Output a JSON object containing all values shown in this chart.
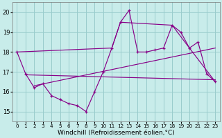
{
  "xlabel": "Windchill (Refroidissement éolien,°C)",
  "bg_color": "#c8ecea",
  "grid_color": "#99cccc",
  "line_color": "#880088",
  "xlim": [
    -0.5,
    23.5
  ],
  "ylim": [
    14.5,
    20.5
  ],
  "yticks": [
    15,
    16,
    17,
    18,
    19,
    20
  ],
  "xticks": [
    0,
    1,
    2,
    3,
    4,
    5,
    6,
    7,
    8,
    9,
    10,
    11,
    12,
    13,
    14,
    15,
    16,
    17,
    18,
    19,
    20,
    21,
    22,
    23
  ],
  "data_x": [
    0,
    1,
    2,
    3,
    4,
    5,
    6,
    7,
    8,
    9,
    10,
    11,
    12,
    13,
    14,
    15,
    16,
    17,
    18,
    19,
    20,
    21,
    22,
    23
  ],
  "data_y": [
    18.0,
    16.9,
    16.2,
    16.4,
    15.8,
    15.6,
    15.4,
    15.3,
    15.0,
    16.0,
    17.0,
    18.2,
    19.5,
    20.1,
    18.0,
    18.0,
    18.1,
    18.2,
    19.35,
    19.0,
    18.2,
    18.5,
    16.9,
    16.5
  ],
  "line1_x": [
    1,
    23
  ],
  "line1_y": [
    16.85,
    16.6
  ],
  "line2_x": [
    2,
    23
  ],
  "line2_y": [
    16.3,
    18.2
  ],
  "env_x": [
    0,
    11,
    12,
    18,
    20,
    23
  ],
  "env_y": [
    18.0,
    18.2,
    19.5,
    19.35,
    18.2,
    16.5
  ],
  "tickfontsize": 6,
  "labelfontsize": 6.5
}
